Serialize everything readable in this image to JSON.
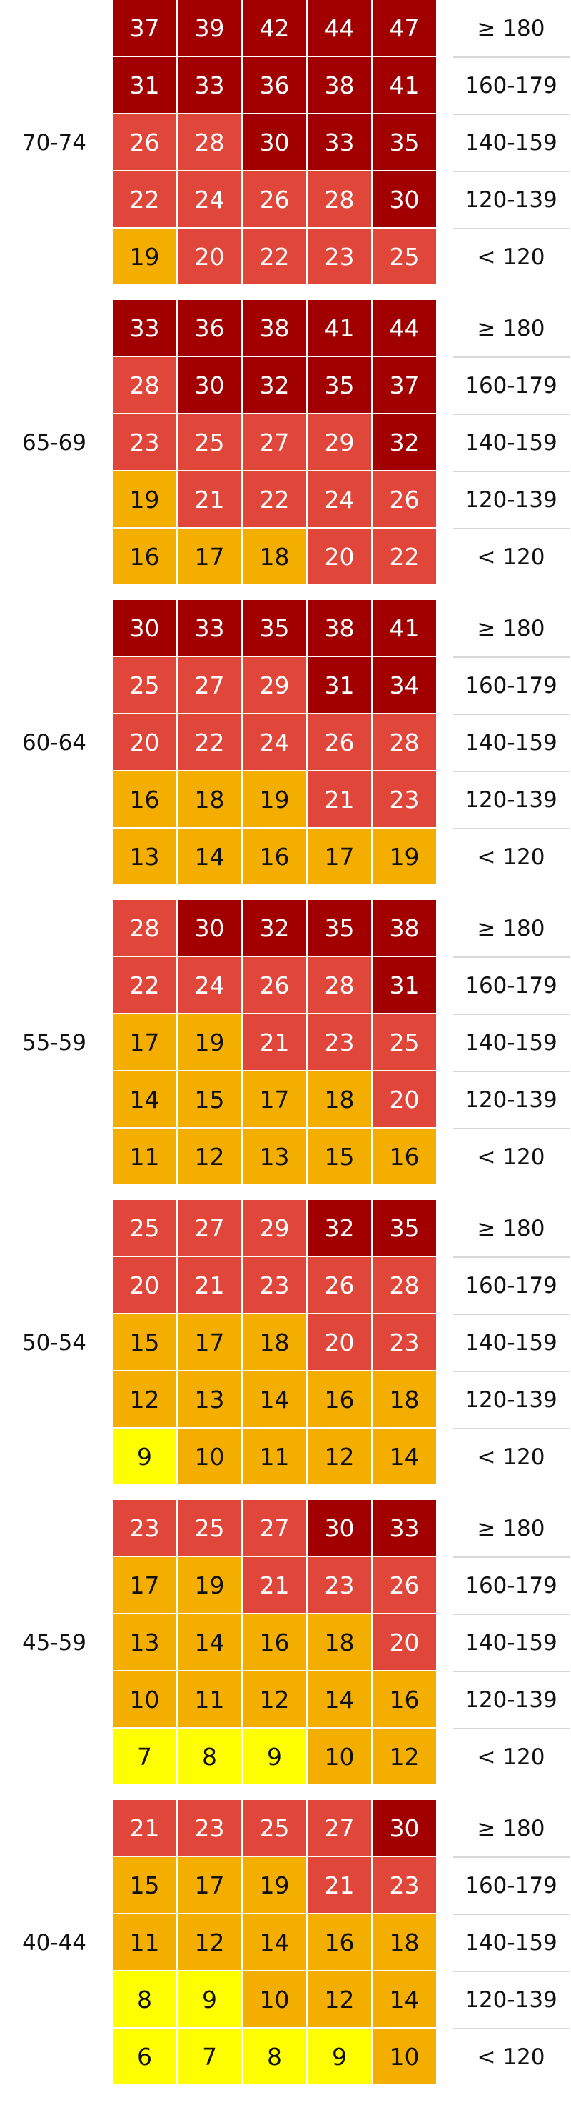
{
  "chart_data": {
    "type": "heatmap",
    "row_labels": [
      "≥ 180",
      "160-179",
      "140-159",
      "120-139",
      "< 120"
    ],
    "groups": [
      {
        "age": "70-74",
        "values": [
          [
            37,
            39,
            42,
            44,
            47
          ],
          [
            31,
            33,
            36,
            38,
            41
          ],
          [
            26,
            28,
            30,
            33,
            35
          ],
          [
            22,
            24,
            26,
            28,
            30
          ],
          [
            19,
            20,
            22,
            23,
            25
          ]
        ]
      },
      {
        "age": "65-69",
        "values": [
          [
            33,
            36,
            38,
            41,
            44
          ],
          [
            28,
            30,
            32,
            35,
            37
          ],
          [
            23,
            25,
            27,
            29,
            32
          ],
          [
            19,
            21,
            22,
            24,
            26
          ],
          [
            16,
            17,
            18,
            20,
            22
          ]
        ]
      },
      {
        "age": "60-64",
        "values": [
          [
            30,
            33,
            35,
            38,
            41
          ],
          [
            25,
            27,
            29,
            31,
            34
          ],
          [
            20,
            22,
            24,
            26,
            28
          ],
          [
            16,
            18,
            19,
            21,
            23
          ],
          [
            13,
            14,
            16,
            17,
            19
          ]
        ]
      },
      {
        "age": "55-59",
        "values": [
          [
            28,
            30,
            32,
            35,
            38
          ],
          [
            22,
            24,
            26,
            28,
            31
          ],
          [
            17,
            19,
            21,
            23,
            25
          ],
          [
            14,
            15,
            17,
            18,
            20
          ],
          [
            11,
            12,
            13,
            15,
            16
          ]
        ]
      },
      {
        "age": "50-54",
        "values": [
          [
            25,
            27,
            29,
            32,
            35
          ],
          [
            20,
            21,
            23,
            26,
            28
          ],
          [
            15,
            17,
            18,
            20,
            23
          ],
          [
            12,
            13,
            14,
            16,
            18
          ],
          [
            9,
            10,
            11,
            12,
            14
          ]
        ]
      },
      {
        "age": "45-59",
        "values": [
          [
            23,
            25,
            27,
            30,
            33
          ],
          [
            17,
            19,
            21,
            23,
            26
          ],
          [
            13,
            14,
            16,
            18,
            20
          ],
          [
            10,
            11,
            12,
            14,
            16
          ],
          [
            7,
            8,
            9,
            10,
            12
          ]
        ]
      },
      {
        "age": "40-44",
        "values": [
          [
            21,
            23,
            25,
            27,
            30
          ],
          [
            15,
            17,
            19,
            21,
            23
          ],
          [
            11,
            12,
            14,
            16,
            18
          ],
          [
            8,
            9,
            10,
            12,
            14
          ],
          [
            6,
            7,
            8,
            9,
            10
          ]
        ]
      }
    ],
    "color_scale": [
      {
        "min": 30,
        "color": "#a20000",
        "text": "#ffffff"
      },
      {
        "min": 20,
        "color": "#e0463a",
        "text": "#ffffff"
      },
      {
        "min": 10,
        "color": "#f4ae00",
        "text": "#111111"
      },
      {
        "min": 0,
        "color": "#ffff00",
        "text": "#111111"
      }
    ],
    "exceptions": [
      {
        "group": "45-59",
        "row": 0,
        "col": 3,
        "color": "#a20000",
        "text": "#ffffff"
      }
    ]
  }
}
